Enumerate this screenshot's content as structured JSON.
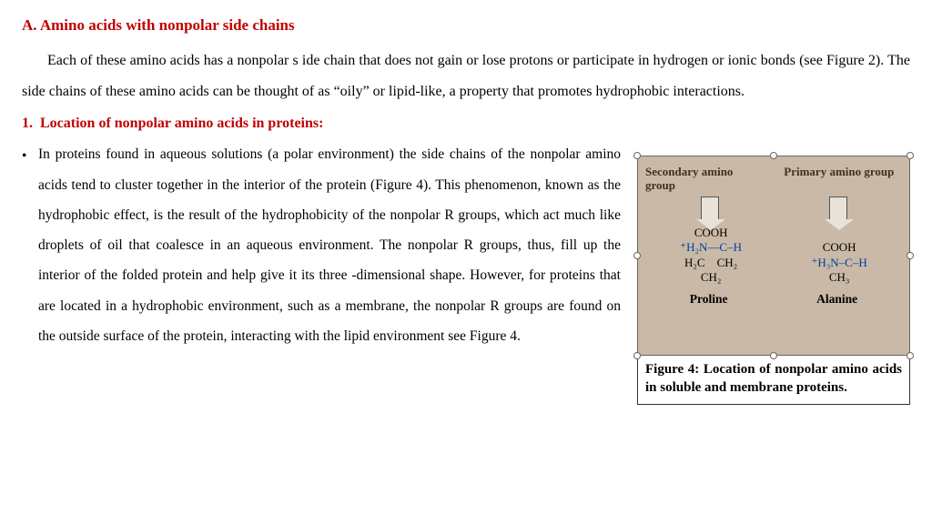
{
  "heading": "A. Amino acids with nonpolar side chains",
  "intro": "Each of these amino acids has a nonpolar s ide chain that does not gain or lose protons or participate in hydrogen or ionic bonds (see Figure 2). The side chains of these amino acids can be thought of as “oily” or lipid-like, a property that promotes hydrophobic interactions.",
  "sub_heading": "1.  Location of nonpolar amino acids in proteins:",
  "bullet_text": "In proteins found in aqueous solutions (a polar environment) the side chains of the nonpolar amino acids tend to cluster together in the interior of the protein (Figure 4). This phenomenon, known as the hydrophobic effect, is the result of the hydrophobicity of the nonpolar R groups, which act much like droplets of oil that coalesce in an aqueous environment. The nonpolar R groups, thus, fill up the interior of the folded protein and help give it its three -dimensional shape. However, for proteins that are located in a hydrophobic environment, such as a membrane, the nonpolar R groups are found on the outside surface of the protein, interacting with the lipid environment see Figure 4.",
  "figure": {
    "label_left": "Secondary amino group",
    "label_right": "Primary amino group",
    "chem_left_lines": [
      "COOH",
      "⁺H₂N—C–H",
      "H₂C  CH₂",
      "CH₂"
    ],
    "chem_right_lines": [
      "COOH",
      "⁺H₃N–C–H",
      "CH₃"
    ],
    "name_left": "Proline",
    "name_right": "Alanine",
    "caption": "Figure 4: Location of nonpolar amino acids in soluble and membrane proteins."
  },
  "colors": {
    "heading_color": "#c00000",
    "text_color": "#000000",
    "figure_bg": "#c9b9a6",
    "hn_color": "#003ea8"
  }
}
